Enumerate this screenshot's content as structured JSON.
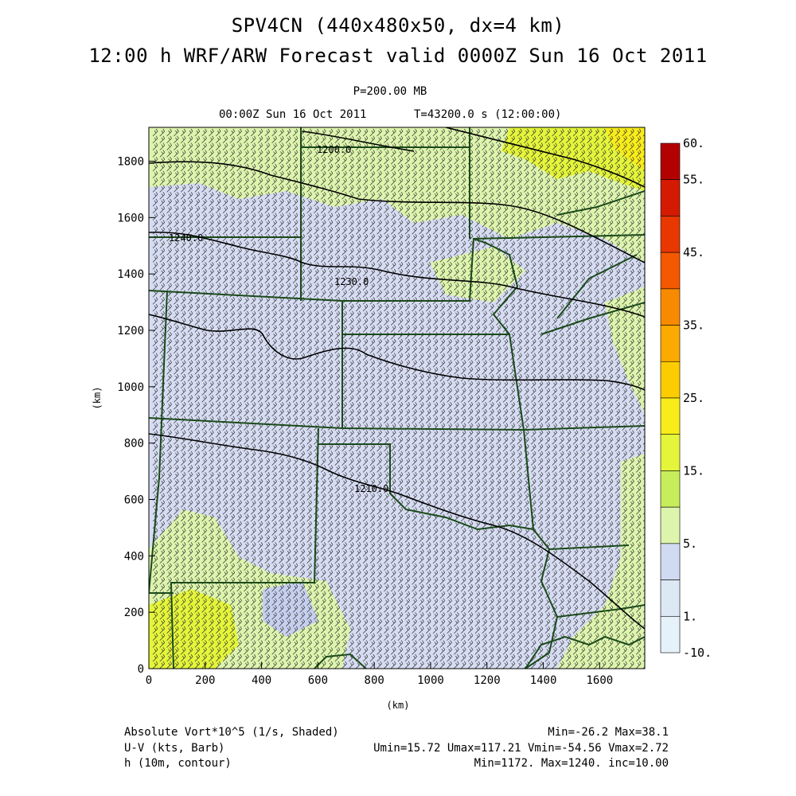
{
  "header": {
    "title_line1": "SPV4CN (440x480x50, dx=4 km)",
    "title_line2": "12:00 h WRF/ARW Forecast valid 0000Z Sun 16 Oct 2011",
    "pressure_level": "P=200.00 MB",
    "valid_time": "00:00Z Sun 16 Oct 2011",
    "elapsed_time": "T=43200.0 s (12:00:00)"
  },
  "map": {
    "x_axis_label": "(km)",
    "y_axis_label": "(km)",
    "x_ticks": [
      "0",
      "200",
      "400",
      "600",
      "800",
      "1000",
      "1200",
      "1400",
      "1600"
    ],
    "y_ticks": [
      "0",
      "200",
      "400",
      "600",
      "800",
      "1000",
      "1200",
      "1400",
      "1600",
      "1800"
    ],
    "x_range_km": [
      0,
      1760
    ],
    "y_range_km": [
      0,
      1920
    ],
    "contour_labels": [
      "1240.0",
      "1230.0",
      "1210.0",
      "1200.0"
    ],
    "colors": {
      "background_field": "#d6dcf2",
      "state_borders": "#1a4a1a",
      "contours": "#000000",
      "barbs": "#333333"
    }
  },
  "colorbar": {
    "labels": [
      "60.",
      "55.",
      "45.",
      "35.",
      "25.",
      "15.",
      "5.",
      "1.",
      "-10."
    ],
    "colors": [
      "#b30000",
      "#d41a00",
      "#e83800",
      "#f45800",
      "#f88a00",
      "#fbaa00",
      "#fdcc00",
      "#f8ec1a",
      "#e4f53a",
      "#c6ee5a",
      "#ddf4ad",
      "#d0daf0",
      "#dde8f5",
      "#e6f2fa"
    ]
  },
  "footer": {
    "field1_name": "Absolute Vort*10^5 (1/s, Shaded)",
    "field1_stats": "Min=-26.2 Max=38.1",
    "field2_name": "U-V (kts, Barb)",
    "field2_stats": "Umin=15.72 Umax=117.21 Vmin=-54.56 Vmax=2.72",
    "field3_name": "h (10m, contour)",
    "field3_stats": "Min=1172. Max=1240. inc=10.00"
  }
}
